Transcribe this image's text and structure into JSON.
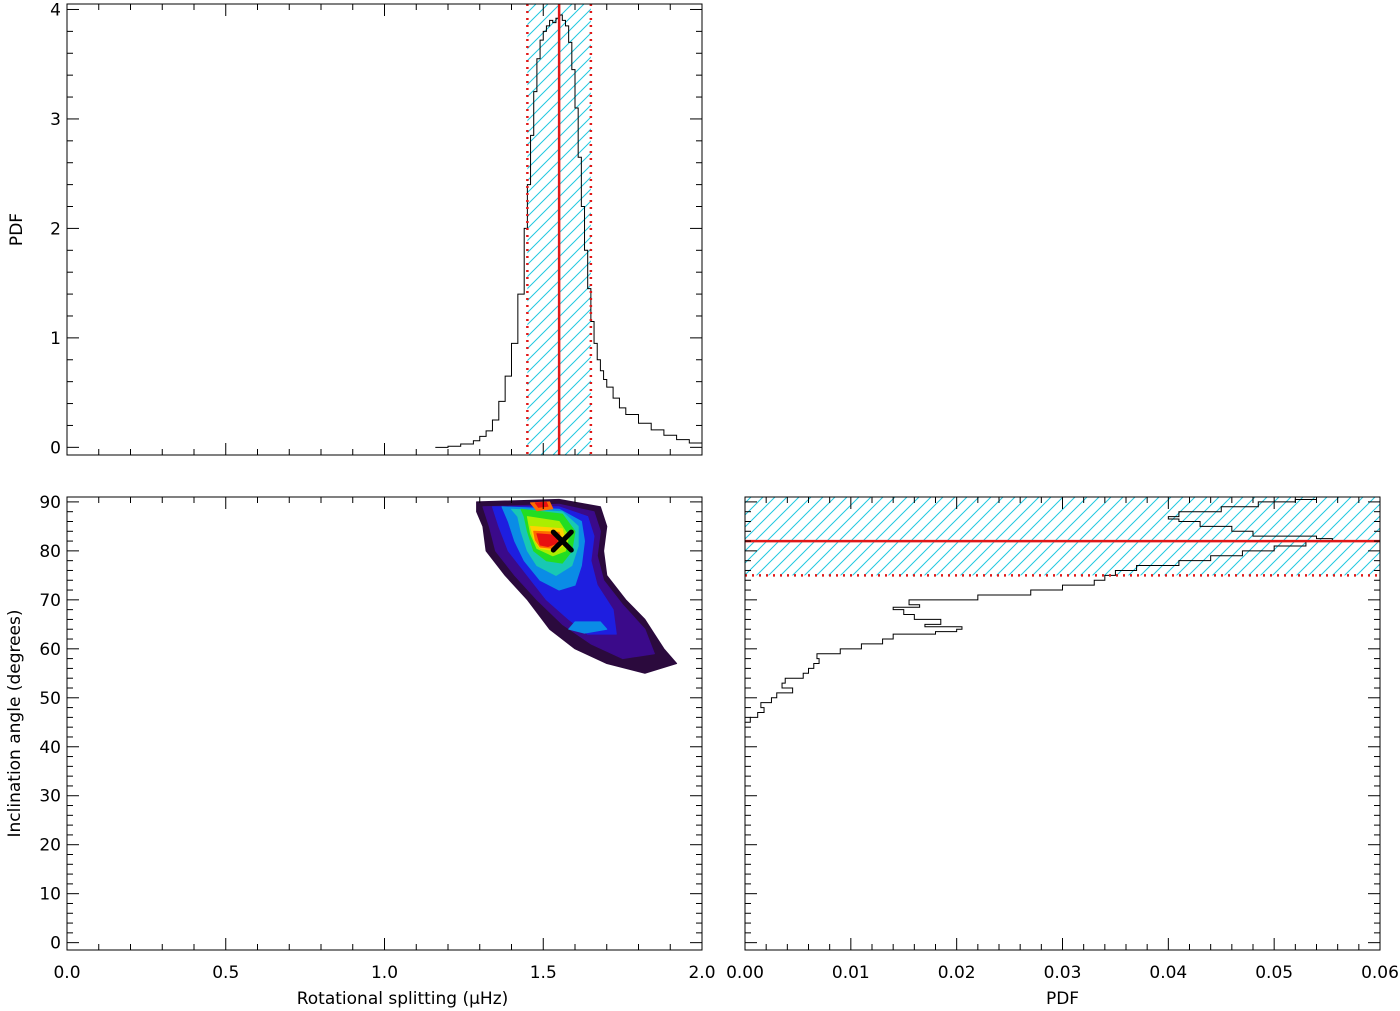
{
  "chart_data": [
    {
      "id": "top-histogram",
      "type": "line",
      "xlim": [
        0.0,
        2.0
      ],
      "ylim": [
        -0.07,
        4.05
      ],
      "yticks": [
        0,
        1,
        2,
        3,
        4
      ],
      "ytick_labels": [
        "0",
        "1",
        "2",
        "3",
        "4"
      ],
      "xticks": [
        0.0,
        0.5,
        1.0,
        1.5,
        2.0
      ],
      "ylabel": "PDF",
      "median": 1.55,
      "credible_interval": [
        1.45,
        1.65
      ],
      "series": [
        {
          "x": [
            1.16,
            1.2,
            1.24,
            1.28,
            1.3,
            1.32,
            1.34,
            1.36,
            1.38,
            1.4,
            1.42,
            1.44,
            1.45,
            1.46,
            1.47,
            1.48,
            1.49,
            1.5,
            1.51,
            1.52,
            1.53,
            1.54,
            1.55,
            1.56,
            1.57,
            1.58,
            1.59,
            1.6,
            1.61,
            1.62,
            1.63,
            1.64,
            1.65,
            1.66,
            1.67,
            1.68,
            1.69,
            1.7,
            1.72,
            1.74,
            1.76,
            1.8,
            1.84,
            1.88,
            1.92,
            1.96,
            2.0
          ],
          "y": [
            0.0,
            0.01,
            0.03,
            0.06,
            0.1,
            0.15,
            0.25,
            0.42,
            0.65,
            0.95,
            1.4,
            2.0,
            2.4,
            2.85,
            3.25,
            3.55,
            3.72,
            3.8,
            3.85,
            3.9,
            3.88,
            3.92,
            3.95,
            3.9,
            3.85,
            3.7,
            3.45,
            3.1,
            2.65,
            2.2,
            1.8,
            1.45,
            1.15,
            0.95,
            0.8,
            0.7,
            0.62,
            0.55,
            0.45,
            0.36,
            0.3,
            0.22,
            0.16,
            0.11,
            0.07,
            0.04,
            0.02
          ]
        }
      ]
    },
    {
      "id": "joint-contour",
      "type": "heatmap",
      "xlim": [
        0.0,
        2.0
      ],
      "ylim": [
        -1.5,
        91
      ],
      "xticks": [
        0.0,
        0.5,
        1.0,
        1.5,
        2.0
      ],
      "xtick_labels": [
        "0.0",
        "0.5",
        "1.0",
        "1.5",
        "2.0"
      ],
      "yticks": [
        0,
        10,
        20,
        30,
        40,
        50,
        60,
        70,
        80,
        90
      ],
      "ytick_labels": [
        "0",
        "10",
        "20",
        "30",
        "40",
        "50",
        "60",
        "70",
        "80",
        "90"
      ],
      "xlabel": "Rotational splitting (μHz)",
      "ylabel": "Inclination angle (degrees)",
      "best_fit_marker": {
        "x": 1.56,
        "y": 82
      },
      "contour_levels": [
        {
          "level": 1,
          "color": "#2b0a3d",
          "points": [
            [
              1.29,
              90
            ],
            [
              1.55,
              90.5
            ],
            [
              1.68,
              89
            ],
            [
              1.7,
              85
            ],
            [
              1.69,
              80
            ],
            [
              1.7,
              75
            ],
            [
              1.76,
              70
            ],
            [
              1.82,
              66
            ],
            [
              1.88,
              60
            ],
            [
              1.92,
              57
            ],
            [
              1.82,
              55
            ],
            [
              1.7,
              57
            ],
            [
              1.6,
              60
            ],
            [
              1.52,
              64
            ],
            [
              1.45,
              70
            ],
            [
              1.38,
              75
            ],
            [
              1.32,
              80
            ],
            [
              1.31,
              85
            ],
            [
              1.29,
              88
            ]
          ]
        },
        {
          "level": 2,
          "color": "#3b0a8a",
          "points": [
            [
              1.31,
              89
            ],
            [
              1.55,
              89.5
            ],
            [
              1.66,
              88
            ],
            [
              1.68,
              84
            ],
            [
              1.67,
              79
            ],
            [
              1.69,
              74
            ],
            [
              1.75,
              69
            ],
            [
              1.82,
              64
            ],
            [
              1.85,
              59
            ],
            [
              1.75,
              58
            ],
            [
              1.65,
              61
            ],
            [
              1.56,
              65
            ],
            [
              1.48,
              70
            ],
            [
              1.41,
              75
            ],
            [
              1.35,
              80
            ],
            [
              1.33,
              85
            ]
          ]
        },
        {
          "level": 3,
          "color": "#1e1ee0",
          "points": [
            [
              1.34,
              89
            ],
            [
              1.55,
              89
            ],
            [
              1.64,
              87
            ],
            [
              1.66,
              83
            ],
            [
              1.65,
              78
            ],
            [
              1.67,
              73
            ],
            [
              1.72,
              68
            ],
            [
              1.73,
              63
            ],
            [
              1.64,
              63
            ],
            [
              1.58,
              66
            ],
            [
              1.51,
              70
            ],
            [
              1.45,
              75
            ],
            [
              1.39,
              80
            ],
            [
              1.36,
              85
            ]
          ]
        },
        {
          "level": 4,
          "color": "#0a8ce6",
          "points": [
            [
              1.37,
              89
            ],
            [
              1.55,
              88.5
            ],
            [
              1.62,
              86
            ],
            [
              1.63,
              82
            ],
            [
              1.62,
              77
            ],
            [
              1.6,
              73
            ],
            [
              1.55,
              72
            ],
            [
              1.49,
              74
            ],
            [
              1.44,
              78
            ],
            [
              1.41,
              82
            ],
            [
              1.39,
              86
            ]
          ]
        },
        {
          "level": 5,
          "color": "#18c8b4",
          "points": [
            [
              1.4,
              88.5
            ],
            [
              1.56,
              88
            ],
            [
              1.61,
              85
            ],
            [
              1.61,
              81
            ],
            [
              1.59,
              77
            ],
            [
              1.54,
              75
            ],
            [
              1.48,
              77
            ],
            [
              1.45,
              80
            ],
            [
              1.43,
              84
            ],
            [
              1.42,
              87
            ]
          ]
        },
        {
          "level": 6,
          "color": "#22dd22",
          "points": [
            [
              1.43,
              88.5
            ],
            [
              1.56,
              87.5
            ],
            [
              1.6,
              84
            ],
            [
              1.59,
              80
            ],
            [
              1.56,
              77.5
            ],
            [
              1.51,
              78
            ],
            [
              1.47,
              80
            ],
            [
              1.45,
              84
            ],
            [
              1.44,
              87
            ]
          ]
        },
        {
          "level": 7,
          "color": "#aaee00",
          "points": [
            [
              1.45,
              87
            ],
            [
              1.55,
              86
            ],
            [
              1.58,
              83
            ],
            [
              1.57,
              80
            ],
            [
              1.53,
              79
            ],
            [
              1.48,
              80.5
            ],
            [
              1.46,
              83.5
            ]
          ]
        },
        {
          "level": 8,
          "color": "#ffd200",
          "points": [
            [
              1.46,
              85
            ],
            [
              1.56,
              84.5
            ],
            [
              1.57,
              81.5
            ],
            [
              1.54,
              80
            ],
            [
              1.49,
              80.5
            ],
            [
              1.47,
              82.5
            ]
          ]
        },
        {
          "level": 9,
          "color": "#ff6a00",
          "points": [
            [
              1.47,
              84
            ],
            [
              1.55,
              83.8
            ],
            [
              1.56,
              81.5
            ],
            [
              1.53,
              80.5
            ],
            [
              1.49,
              80.8
            ],
            [
              1.475,
              82.2
            ]
          ]
        },
        {
          "level": 10,
          "color": "#e81010",
          "points": [
            [
              1.48,
              83.5
            ],
            [
              1.54,
              83.2
            ],
            [
              1.545,
              81.6
            ],
            [
              1.515,
              80.9
            ],
            [
              1.49,
              81.2
            ]
          ]
        },
        {
          "level": 11,
          "color": "#ff6a00",
          "points": [
            [
              1.46,
              89.8
            ],
            [
              1.52,
              90
            ],
            [
              1.53,
              88.6
            ],
            [
              1.48,
              88.2
            ]
          ]
        },
        {
          "level": 12,
          "color": "#e81010",
          "points": [
            [
              1.475,
              89.8
            ],
            [
              1.51,
              89.9
            ],
            [
              1.515,
              89.1
            ],
            [
              1.485,
              88.9
            ]
          ]
        },
        {
          "level": 13,
          "color": "#0a8ce6",
          "points": [
            [
              1.6,
              65.5
            ],
            [
              1.68,
              65.5
            ],
            [
              1.7,
              64
            ],
            [
              1.63,
              63.2
            ],
            [
              1.58,
              64
            ]
          ]
        }
      ]
    },
    {
      "id": "right-histogram",
      "type": "line",
      "xlim": [
        0.0,
        0.06
      ],
      "ylim": [
        -1.5,
        91
      ],
      "xticks": [
        0.0,
        0.01,
        0.02,
        0.03,
        0.04,
        0.05,
        0.06
      ],
      "xtick_labels": [
        "0.00",
        "0.01",
        "0.02",
        "0.03",
        "0.04",
        "0.05",
        "0.06"
      ],
      "xlabel": "PDF",
      "median": 82,
      "credible_interval": [
        75,
        91
      ],
      "series": [
        {
          "inc": [
            44,
            45,
            46,
            47,
            48,
            49,
            50,
            51,
            52,
            53,
            54,
            55,
            56,
            57,
            58,
            59,
            60,
            61,
            62,
            63,
            63.5,
            64,
            64.5,
            65,
            66,
            67,
            68,
            68.5,
            69,
            70,
            71,
            72,
            73,
            74,
            75,
            76,
            77,
            78,
            79,
            80,
            81,
            82,
            82.5,
            83,
            84,
            85,
            86,
            86.5,
            87,
            88,
            89,
            90,
            90.5
          ],
          "pdf": [
            0.0,
            0.0005,
            0.0012,
            0.0018,
            0.0015,
            0.0025,
            0.003,
            0.0045,
            0.0035,
            0.0038,
            0.0055,
            0.006,
            0.0065,
            0.007,
            0.0068,
            0.009,
            0.011,
            0.013,
            0.014,
            0.018,
            0.02,
            0.0205,
            0.017,
            0.0185,
            0.016,
            0.015,
            0.014,
            0.0165,
            0.0155,
            0.022,
            0.027,
            0.03,
            0.033,
            0.034,
            0.035,
            0.037,
            0.041,
            0.044,
            0.047,
            0.05,
            0.053,
            0.0555,
            0.054,
            0.048,
            0.046,
            0.043,
            0.041,
            0.04,
            0.041,
            0.045,
            0.0485,
            0.052,
            0.054
          ]
        }
      ]
    }
  ],
  "colors": {
    "median_line": "#e01818",
    "interval_hatch": "#22c8e0",
    "histogram": "#000000"
  }
}
